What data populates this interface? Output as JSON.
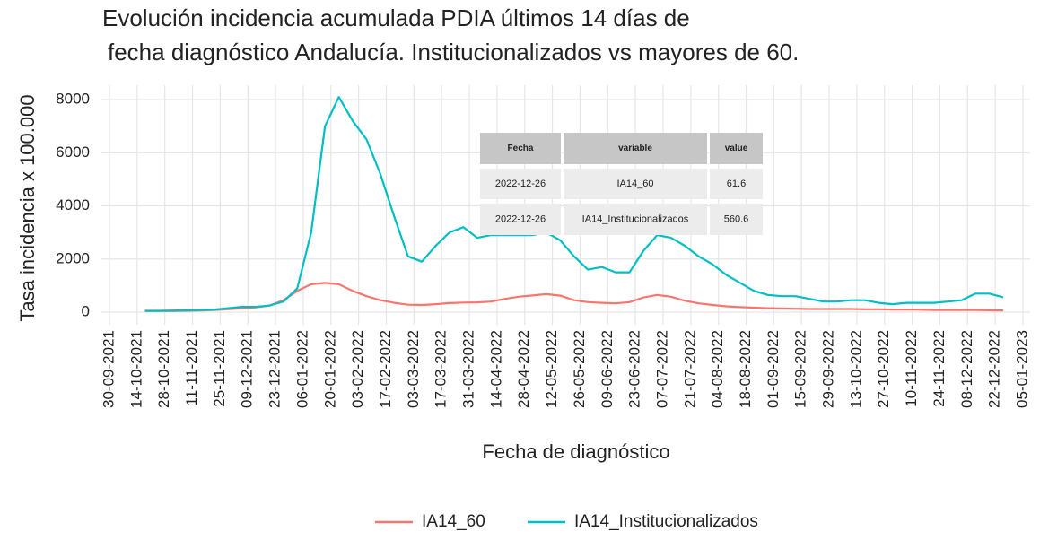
{
  "chart_data": {
    "type": "line",
    "title": [
      "Evolución incidencia acumulada PDIA últimos 14 días de",
      "fecha diagnóstico Andalucía. Institucionalizados vs mayores de 60."
    ],
    "x_label": "Fecha de diagnóstico",
    "y_label": "Tasa incidencia x 100.000",
    "x": [
      "2021-10-18",
      "2021-10-25",
      "2021-11-01",
      "2021-11-08",
      "2021-11-15",
      "2021-11-22",
      "2021-11-29",
      "2021-12-06",
      "2021-12-13",
      "2021-12-20",
      "2021-12-27",
      "2022-01-03",
      "2022-01-10",
      "2022-01-17",
      "2022-01-24",
      "2022-01-31",
      "2022-02-07",
      "2022-02-14",
      "2022-02-21",
      "2022-02-28",
      "2022-03-07",
      "2022-03-14",
      "2022-03-21",
      "2022-03-28",
      "2022-04-04",
      "2022-04-11",
      "2022-04-18",
      "2022-04-25",
      "2022-05-02",
      "2022-05-09",
      "2022-05-16",
      "2022-05-23",
      "2022-05-30",
      "2022-06-06",
      "2022-06-13",
      "2022-06-20",
      "2022-06-27",
      "2022-07-04",
      "2022-07-11",
      "2022-07-18",
      "2022-07-25",
      "2022-08-01",
      "2022-08-08",
      "2022-08-15",
      "2022-08-22",
      "2022-08-29",
      "2022-09-05",
      "2022-09-12",
      "2022-09-19",
      "2022-09-26",
      "2022-10-03",
      "2022-10-10",
      "2022-10-17",
      "2022-10-24",
      "2022-10-31",
      "2022-11-07",
      "2022-11-14",
      "2022-11-21",
      "2022-11-28",
      "2022-12-05",
      "2022-12-12",
      "2022-12-19",
      "2022-12-26"
    ],
    "series": [
      {
        "name": "IA14_60",
        "color": "#F8766D",
        "values": [
          40,
          40,
          40,
          50,
          60,
          80,
          110,
          150,
          180,
          250,
          450,
          800,
          1050,
          1100,
          1050,
          800,
          600,
          450,
          350,
          280,
          270,
          300,
          340,
          360,
          370,
          400,
          500,
          580,
          630,
          680,
          620,
          450,
          380,
          350,
          330,
          380,
          550,
          650,
          580,
          430,
          330,
          270,
          220,
          190,
          170,
          150,
          140,
          130,
          120,
          120,
          120,
          120,
          110,
          110,
          100,
          100,
          90,
          80,
          80,
          80,
          80,
          70,
          61.6
        ]
      },
      {
        "name": "IA14_Institucionalizados",
        "color": "#00BFC4",
        "values": [
          50,
          50,
          60,
          70,
          80,
          100,
          150,
          200,
          200,
          250,
          400,
          900,
          3000,
          7000,
          8100,
          7200,
          6500,
          5200,
          3600,
          2100,
          1900,
          2500,
          3000,
          3200,
          2800,
          2900,
          2900,
          2900,
          2900,
          3000,
          2700,
          2100,
          1600,
          1700,
          1500,
          1500,
          2300,
          2900,
          2800,
          2500,
          2100,
          1800,
          1400,
          1100,
          800,
          650,
          600,
          600,
          500,
          400,
          400,
          450,
          450,
          350,
          300,
          350,
          350,
          350,
          400,
          450,
          700,
          700,
          560.6
        ]
      }
    ],
    "xlim": [
      "2021-09-30",
      "2023-01-05"
    ],
    "xticks": [
      {
        "value": "2021-09-30",
        "label": "30-09-2021"
      },
      {
        "value": "2021-10-14",
        "label": "14-10-2021"
      },
      {
        "value": "2021-10-28",
        "label": "28-10-2021"
      },
      {
        "value": "2021-11-11",
        "label": "11-11-2021"
      },
      {
        "value": "2021-11-25",
        "label": "25-11-2021"
      },
      {
        "value": "2021-12-09",
        "label": "09-12-2021"
      },
      {
        "value": "2021-12-23",
        "label": "23-12-2021"
      },
      {
        "value": "2022-01-06",
        "label": "06-01-2022"
      },
      {
        "value": "2022-01-20",
        "label": "20-01-2022"
      },
      {
        "value": "2022-02-03",
        "label": "03-02-2022"
      },
      {
        "value": "2022-02-17",
        "label": "17-02-2022"
      },
      {
        "value": "2022-03-03",
        "label": "03-03-2022"
      },
      {
        "value": "2022-03-17",
        "label": "17-03-2022"
      },
      {
        "value": "2022-03-31",
        "label": "31-03-2022"
      },
      {
        "value": "2022-04-14",
        "label": "14-04-2022"
      },
      {
        "value": "2022-04-28",
        "label": "28-04-2022"
      },
      {
        "value": "2022-05-12",
        "label": "12-05-2022"
      },
      {
        "value": "2022-05-26",
        "label": "26-05-2022"
      },
      {
        "value": "2022-06-09",
        "label": "09-06-2022"
      },
      {
        "value": "2022-06-23",
        "label": "23-06-2022"
      },
      {
        "value": "2022-07-07",
        "label": "07-07-2022"
      },
      {
        "value": "2022-07-21",
        "label": "21-07-2022"
      },
      {
        "value": "2022-08-04",
        "label": "04-08-2022"
      },
      {
        "value": "2022-08-18",
        "label": "18-08-2022"
      },
      {
        "value": "2022-09-01",
        "label": "01-09-2022"
      },
      {
        "value": "2022-09-15",
        "label": "15-09-2022"
      },
      {
        "value": "2022-09-29",
        "label": "29-09-2022"
      },
      {
        "value": "2022-10-13",
        "label": "13-10-2022"
      },
      {
        "value": "2022-10-27",
        "label": "27-10-2022"
      },
      {
        "value": "2022-11-10",
        "label": "10-11-2022"
      },
      {
        "value": "2022-11-24",
        "label": "24-11-2022"
      },
      {
        "value": "2022-12-08",
        "label": "08-12-2022"
      },
      {
        "value": "2022-12-22",
        "label": "22-12-2022"
      },
      {
        "value": "2023-01-05",
        "label": "05-01-2023"
      }
    ],
    "ylim": [
      -300,
      8700
    ],
    "yticks": [
      0,
      2000,
      4000,
      6000,
      8000
    ],
    "grid": true,
    "legend": "bottom"
  },
  "tooltip": {
    "header": [
      "Fecha",
      "variable",
      "value"
    ],
    "rows": [
      [
        "2022-12-26",
        "IA14_60",
        61.6
      ],
      [
        "2022-12-26",
        "IA14_Institucionalizados",
        560.6
      ]
    ]
  }
}
